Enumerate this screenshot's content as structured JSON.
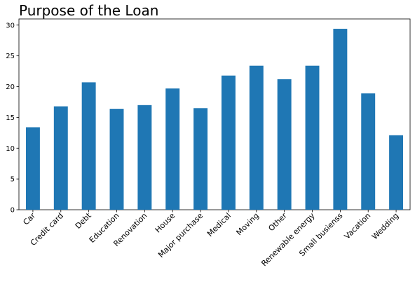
{
  "chart_data": {
    "type": "bar",
    "title": "Purpose of the Loan",
    "xlabel": "",
    "ylabel": "",
    "categories": [
      "Car",
      "Credit card",
      "Debt",
      "Education",
      "Renovation",
      "House",
      "Major purchase",
      "Medical",
      "Moving",
      "Other",
      "Renewable energy",
      "Small busienss",
      "Vacation",
      "Wedding"
    ],
    "values": [
      13.4,
      16.8,
      20.7,
      16.4,
      17.0,
      19.7,
      16.5,
      21.8,
      23.4,
      21.2,
      23.4,
      29.4,
      18.9,
      12.1
    ],
    "ylim": [
      0,
      31
    ],
    "yticks": [
      0,
      5,
      10,
      15,
      20,
      25,
      30
    ],
    "bar_color": "#1f77b4",
    "grid": false,
    "legend": "none"
  }
}
